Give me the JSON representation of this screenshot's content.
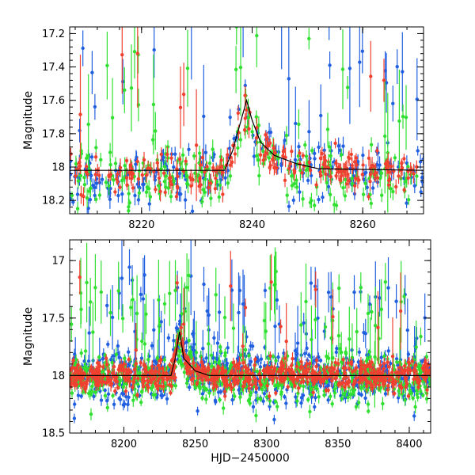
{
  "chart_data": [
    {
      "type": "scatter",
      "panel": "top",
      "title": "",
      "xlabel": "",
      "ylabel": "Magnitude",
      "xlim": [
        8207,
        8271
      ],
      "ylim": [
        18.28,
        17.16
      ],
      "y_inverted": true,
      "x_ticks": [
        8220,
        8240,
        8260
      ],
      "y_ticks": [
        17.2,
        17.4,
        17.6,
        17.8,
        18,
        18.2
      ],
      "grid": false,
      "legend": "none",
      "series": [
        {
          "color": "#2060e0",
          "baseline": 18.02,
          "scatter": 0.09,
          "outlier_rate": 0.12
        },
        {
          "color": "#30e030",
          "baseline": 18.04,
          "scatter": 0.08,
          "outlier_rate": 0.12
        },
        {
          "color": "#f04030",
          "baseline": 18.02,
          "scatter": 0.06,
          "outlier_rate": 0.03
        }
      ],
      "model_curve": [
        [
          8207,
          18.02
        ],
        [
          8235,
          18.02
        ],
        [
          8236.5,
          17.9
        ],
        [
          8238,
          17.72
        ],
        [
          8239,
          17.6
        ],
        [
          8240,
          17.72
        ],
        [
          8241.5,
          17.85
        ],
        [
          8244,
          17.93
        ],
        [
          8248,
          17.98
        ],
        [
          8252,
          18.01
        ],
        [
          8271,
          18.02
        ]
      ]
    },
    {
      "type": "scatter",
      "panel": "bottom",
      "title": "",
      "xlabel": "HJD−2450000",
      "ylabel": "Magnitude",
      "xlim": [
        8162,
        8415
      ],
      "ylim": [
        18.5,
        16.82
      ],
      "y_inverted": true,
      "x_ticks": [
        8200,
        8250,
        8300,
        8350,
        8400
      ],
      "y_ticks": [
        17,
        17.5,
        18,
        18.5
      ],
      "grid": false,
      "legend": "none",
      "series": [
        {
          "color": "#2060e0",
          "baseline": 18.0,
          "scatter": 0.12,
          "outlier_rate": 0.1
        },
        {
          "color": "#30e030",
          "baseline": 18.02,
          "scatter": 0.1,
          "outlier_rate": 0.1
        },
        {
          "color": "#f04030",
          "baseline": 18.0,
          "scatter": 0.06,
          "outlier_rate": 0.03
        }
      ],
      "model_curve": [
        [
          8162,
          18.0
        ],
        [
          8233,
          18.0
        ],
        [
          8236,
          17.85
        ],
        [
          8239,
          17.62
        ],
        [
          8242,
          17.85
        ],
        [
          8250,
          17.96
        ],
        [
          8260,
          18.0
        ],
        [
          8415,
          18.0
        ]
      ]
    }
  ]
}
